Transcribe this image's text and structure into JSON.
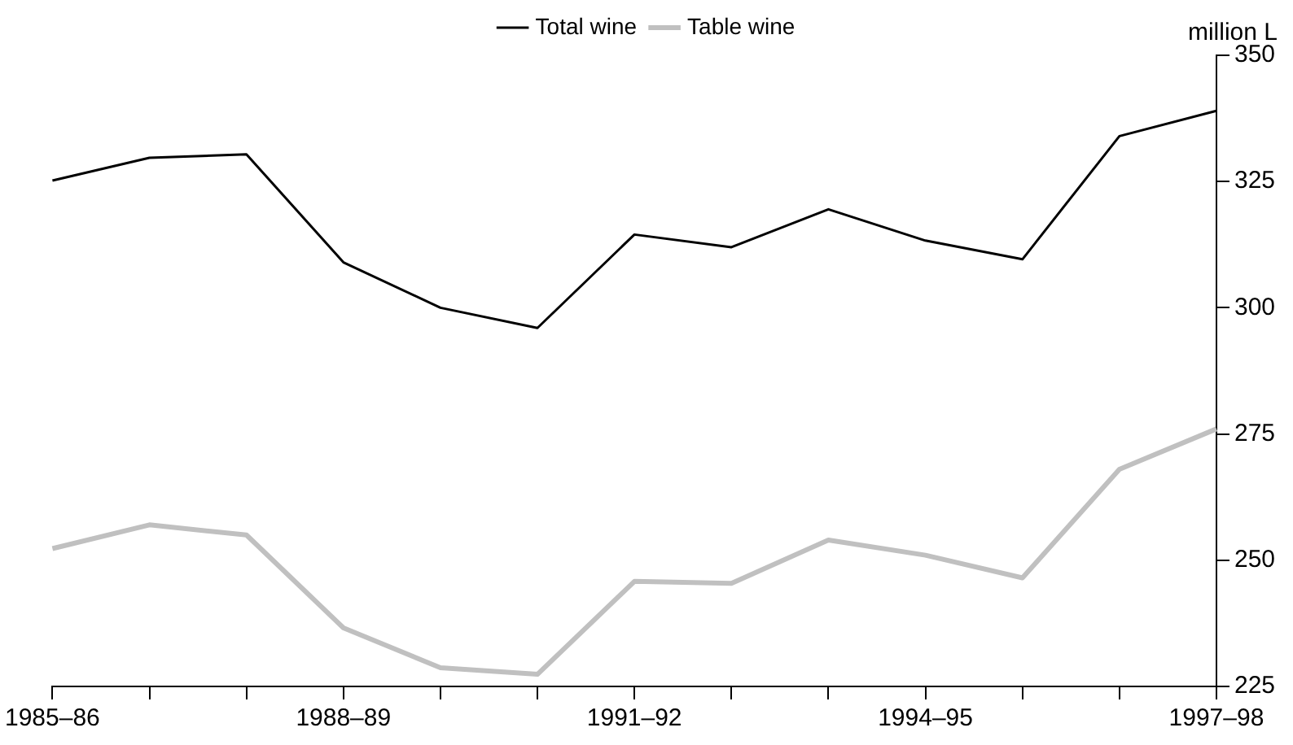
{
  "chart_data": {
    "type": "line",
    "ylabel": "million L",
    "categories": [
      "1985–86",
      null,
      null,
      "1988–89",
      null,
      null,
      "1991–92",
      null,
      null,
      "1994–95",
      null,
      null,
      "1997–98"
    ],
    "series": [
      {
        "name": "Total wine",
        "color": "#000000",
        "values": [
          325.2,
          329.7,
          330.4,
          309,
          300,
          296,
          314.5,
          312,
          319.5,
          313.3,
          309.6,
          334,
          339
        ]
      },
      {
        "name": "Table wine",
        "color": "#c0c0c0",
        "values": [
          252.3,
          257,
          255,
          236.6,
          228.7,
          227.4,
          245.8,
          245.4,
          254,
          251,
          246.5,
          268,
          276
        ]
      }
    ],
    "ylim": [
      225,
      350
    ],
    "yticks": [
      225,
      250,
      275,
      300,
      325,
      350
    ],
    "grid": false,
    "legend": "top",
    "marker": "none",
    "line_style": "solid"
  }
}
